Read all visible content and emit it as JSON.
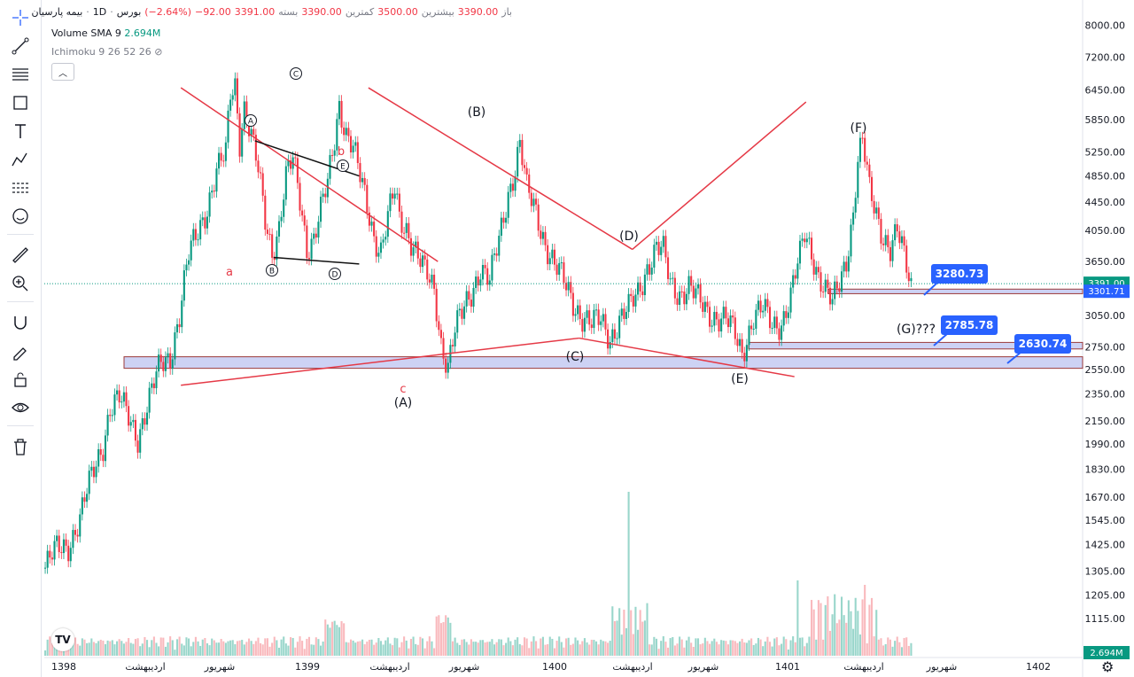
{
  "legend": {
    "symbol": "بیمه پارسیان",
    "separator": "·",
    "interval": "1D",
    "exchange": "بورس",
    "open_label": "باز",
    "open": "3390.00",
    "high_label": "بیشترین",
    "high": "3500.00",
    "low_label": "کمترین",
    "low": "3390.00",
    "close_label": "بسته",
    "close": "3391.00",
    "change": "−92.00",
    "change_pct": "(−2.64%)",
    "volume_label": "Volume SMA 9",
    "volume_value": "2.694M",
    "ichimoku_label": "Ichimoku 9 26 52 26"
  },
  "toolbar": {
    "icons": [
      "crosshair-icon",
      "trend-line-icon",
      "fib-icon",
      "rectangle-icon",
      "text-icon",
      "pattern-icon",
      "forecast-icon",
      "emoji-icon",
      "ruler-icon",
      "zoom-icon",
      "magnet-icon",
      "lock-draw-icon",
      "lock-icon",
      "eye-icon",
      "trash-icon"
    ]
  },
  "colors": {
    "up": "#089981",
    "down": "#f23645",
    "annotation_line": "#e53946",
    "zone_fill": "#c5cbf3",
    "zone_border": "#8b1a1a",
    "label_blue": "#2962ff",
    "price_current": "#089981",
    "price_other": "#2962ff"
  },
  "chart_data": {
    "type": "candlestick",
    "y_scale": "log",
    "ylim": [
      1000,
      8300
    ],
    "y_ticks": [
      "8000.00",
      "7200.00",
      "6450.00",
      "5850.00",
      "5250.00",
      "4850.00",
      "4450.00",
      "4050.00",
      "3650.00",
      "3050.00",
      "2750.00",
      "2550.00",
      "2350.00",
      "2150.00",
      "1990.00",
      "1830.00",
      "1670.00",
      "1545.00",
      "1425.00",
      "1305.00",
      "1205.00",
      "1115.00"
    ],
    "x_ticks": [
      "1398",
      "اردیبهشت",
      "شهریور",
      "1399",
      "اردیبهشت",
      "شهریور",
      "1400",
      "اردیبهشت",
      "شهریور",
      "1401",
      "اردیبهشت",
      "شهریور",
      "1402"
    ],
    "price_path": [
      [
        0,
        1320
      ],
      [
        5,
        1400
      ],
      [
        10,
        1430
      ],
      [
        15,
        1550
      ],
      [
        20,
        1780
      ],
      [
        25,
        2000
      ],
      [
        28,
        2250
      ],
      [
        32,
        2300
      ],
      [
        36,
        2180
      ],
      [
        40,
        2050
      ],
      [
        45,
        2300
      ],
      [
        50,
        2600
      ],
      [
        54,
        2680
      ],
      [
        58,
        3050
      ],
      [
        62,
        3700
      ],
      [
        66,
        4050
      ],
      [
        70,
        4400
      ],
      [
        74,
        4900
      ],
      [
        78,
        5200
      ],
      [
        80,
        6400
      ],
      [
        82,
        6600
      ],
      [
        84,
        5500
      ],
      [
        86,
        6100
      ],
      [
        88,
        5700
      ],
      [
        92,
        4900
      ],
      [
        95,
        4200
      ],
      [
        98,
        3800
      ],
      [
        101,
        4100
      ],
      [
        104,
        4800
      ],
      [
        107,
        5100
      ],
      [
        110,
        4500
      ],
      [
        113,
        3850
      ],
      [
        116,
        3950
      ],
      [
        119,
        4300
      ],
      [
        122,
        4700
      ],
      [
        125,
        5500
      ],
      [
        127,
        6200
      ],
      [
        130,
        5600
      ],
      [
        133,
        5300
      ],
      [
        136,
        4800
      ],
      [
        139,
        4400
      ],
      [
        142,
        4000
      ],
      [
        145,
        3800
      ],
      [
        148,
        4200
      ],
      [
        151,
        4600
      ],
      [
        153,
        4200
      ],
      [
        156,
        4100
      ],
      [
        160,
        3800
      ],
      [
        164,
        3500
      ],
      [
        168,
        3300
      ],
      [
        171,
        2800
      ],
      [
        174,
        2600
      ],
      [
        177,
        2900
      ],
      [
        180,
        3050
      ],
      [
        184,
        3300
      ],
      [
        188,
        3600
      ],
      [
        192,
        3400
      ],
      [
        196,
        3900
      ],
      [
        200,
        4600
      ],
      [
        203,
        5000
      ],
      [
        205,
        5400
      ],
      [
        208,
        4600
      ],
      [
        212,
        4300
      ],
      [
        216,
        3900
      ],
      [
        220,
        3600
      ],
      [
        224,
        3400
      ],
      [
        228,
        3200
      ],
      [
        232,
        3050
      ],
      [
        236,
        2950
      ],
      [
        240,
        3000
      ],
      [
        244,
        2850
      ],
      [
        248,
        3000
      ],
      [
        252,
        3100
      ],
      [
        256,
        3300
      ],
      [
        260,
        3600
      ],
      [
        264,
        3800
      ],
      [
        267,
        3750
      ],
      [
        270,
        3400
      ],
      [
        274,
        3300
      ],
      [
        278,
        3350
      ],
      [
        282,
        3200
      ],
      [
        286,
        3100
      ],
      [
        290,
        3050
      ],
      [
        294,
        3000
      ],
      [
        298,
        2850
      ],
      [
        301,
        2700
      ],
      [
        303,
        2850
      ],
      [
        306,
        3050
      ],
      [
        310,
        3100
      ],
      [
        314,
        2950
      ],
      [
        318,
        3000
      ],
      [
        322,
        3250
      ],
      [
        326,
        3700
      ],
      [
        328,
        4000
      ],
      [
        331,
        3800
      ],
      [
        334,
        3500
      ],
      [
        337,
        3300
      ],
      [
        340,
        3150
      ],
      [
        343,
        3400
      ],
      [
        346,
        3700
      ],
      [
        349,
        4300
      ],
      [
        351,
        5100
      ],
      [
        353,
        5400
      ],
      [
        356,
        4600
      ],
      [
        359,
        4300
      ],
      [
        362,
        4000
      ],
      [
        365,
        3800
      ],
      [
        368,
        4000
      ],
      [
        371,
        3700
      ],
      [
        374,
        3391
      ]
    ],
    "volume_profile": "spikes near highs; max bar near 1400",
    "annotations": [
      {
        "text": "(A)",
        "type": "wave_label"
      },
      {
        "text": "(B)",
        "type": "wave_label"
      },
      {
        "text": "(C)",
        "type": "wave_label"
      },
      {
        "text": "(D)",
        "type": "wave_label"
      },
      {
        "text": "(E)",
        "type": "wave_label"
      },
      {
        "text": "(F)",
        "type": "wave_label"
      },
      {
        "text": "(G)???",
        "type": "wave_label"
      },
      {
        "text": "a",
        "color": "#e53946"
      },
      {
        "text": "b",
        "color": "#e53946"
      },
      {
        "text": "c",
        "color": "#e53946"
      },
      {
        "text": "A",
        "type": "circled"
      },
      {
        "text": "B",
        "type": "circled"
      },
      {
        "text": "C",
        "type": "circled"
      },
      {
        "text": "D",
        "type": "circled"
      },
      {
        "text": "E",
        "type": "circled"
      }
    ],
    "price_labels": [
      {
        "text": "3280.73",
        "value": 3280.73
      },
      {
        "text": "2785.78",
        "value": 2785.78
      },
      {
        "text": "2630.74",
        "value": 2630.74
      }
    ],
    "zones": [
      {
        "from": 2560,
        "to": 2660
      },
      {
        "from": 2730,
        "to": 2790
      },
      {
        "from": 3280,
        "to": 3330
      }
    ],
    "axis_badges": [
      {
        "text": "3391.00",
        "value": 3391,
        "color": "#089981"
      },
      {
        "text": "3301.71",
        "value": 3301.71,
        "color": "#2962ff"
      },
      {
        "text": "2.694M",
        "color": "#089981"
      }
    ]
  }
}
